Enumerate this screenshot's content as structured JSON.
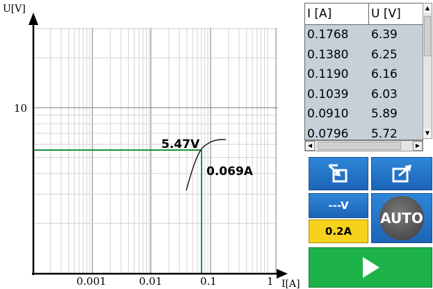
{
  "plot": {
    "y_axis_label": "U[V]",
    "x_axis_label": "I[A]",
    "y_tick_labels": [
      "10"
    ],
    "x_tick_labels": [
      "0.001",
      "0.01",
      "0.1",
      "1"
    ],
    "marker": {
      "voltage_label": "5.47V",
      "current_label": "0.069A"
    },
    "curve_color": "#000000",
    "marker_color": "#1a8f3a"
  },
  "table": {
    "headers": [
      "I [A]",
      "U [V]"
    ],
    "rows": [
      [
        "0.1768",
        "6.39"
      ],
      [
        "0.1380",
        "6.25"
      ],
      [
        "0.1190",
        "6.16"
      ],
      [
        "0.1039",
        "6.03"
      ],
      [
        "0.0910",
        "5.89"
      ],
      [
        "0.0796",
        "5.72"
      ]
    ]
  },
  "buttons": {
    "copy_icon": "copy-to-chart-icon",
    "export_icon": "export-icon",
    "voltage_label": "---V",
    "current_label": "0.2A",
    "auto_label": "AUTO",
    "run_icon": "play-icon"
  },
  "colors": {
    "button_blue": "#1c64b6",
    "current_yellow": "#f6d21c",
    "run_green": "#1db349",
    "table_bg": "#c6d0d8"
  }
}
